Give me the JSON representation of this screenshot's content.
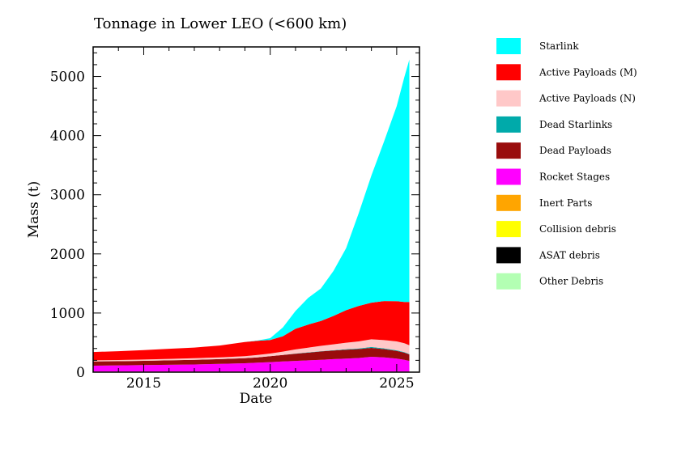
{
  "chart_data": {
    "type": "area",
    "stacked": true,
    "title": "Tonnage in Lower LEO (<600 km)",
    "xlabel": "Date",
    "ylabel": "Mass (t)",
    "xlim": [
      2013,
      2025.9
    ],
    "ylim": [
      0,
      5500
    ],
    "xticks": [
      2015,
      2020,
      2025
    ],
    "xtick_labels": [
      "2015",
      "2020",
      "2025"
    ],
    "yticks": [
      0,
      1000,
      2000,
      3000,
      4000,
      5000
    ],
    "ytick_labels": [
      "0",
      "1000",
      "2000",
      "3000",
      "4000",
      "5000"
    ],
    "grid": false,
    "legend_position": "right",
    "x": [
      2013.0,
      2014.0,
      2015.0,
      2016.0,
      2017.0,
      2018.0,
      2019.0,
      2019.5,
      2020.0,
      2020.5,
      2021.0,
      2021.5,
      2022.0,
      2022.5,
      2023.0,
      2023.5,
      2024.0,
      2024.5,
      2025.0,
      2025.3,
      2025.5
    ],
    "series": [
      {
        "name": "Other Debris",
        "color": "#b3ffb3",
        "values": [
          2,
          2,
          2,
          2,
          2,
          2,
          2,
          2,
          2,
          2,
          2,
          2,
          2,
          2,
          2,
          2,
          2,
          2,
          2,
          2,
          2
        ]
      },
      {
        "name": "ASAT debris",
        "color": "#000000",
        "values": [
          3,
          3,
          3,
          3,
          3,
          3,
          3,
          3,
          3,
          3,
          3,
          3,
          3,
          3,
          3,
          3,
          3,
          3,
          3,
          3,
          3
        ]
      },
      {
        "name": "Collision debris",
        "color": "#ffff00",
        "values": [
          2,
          2,
          2,
          2,
          2,
          2,
          2,
          2,
          2,
          2,
          2,
          2,
          2,
          2,
          2,
          2,
          2,
          2,
          2,
          2,
          2
        ]
      },
      {
        "name": "Inert Parts",
        "color": "#ffa500",
        "values": [
          3,
          3,
          3,
          3,
          3,
          3,
          3,
          3,
          3,
          3,
          3,
          3,
          3,
          3,
          3,
          3,
          3,
          3,
          3,
          3,
          3
        ]
      },
      {
        "name": "Rocket Stages",
        "color": "#ff00ff",
        "values": [
          100,
          105,
          110,
          115,
          120,
          130,
          140,
          150,
          160,
          170,
          180,
          190,
          200,
          210,
          220,
          230,
          250,
          240,
          220,
          200,
          180
        ]
      },
      {
        "name": "Dead Payloads",
        "color": "#990c0c",
        "values": [
          70,
          70,
          72,
          75,
          78,
          80,
          85,
          90,
          100,
          110,
          120,
          130,
          140,
          145,
          150,
          150,
          150,
          140,
          130,
          120,
          110
        ]
      },
      {
        "name": "Dead Starlinks",
        "color": "#00aaaa",
        "values": [
          0,
          0,
          0,
          0,
          0,
          0,
          0,
          0,
          0,
          2,
          4,
          5,
          5,
          6,
          8,
          10,
          15,
          12,
          10,
          8,
          6
        ]
      },
      {
        "name": "Active Payloads (N)",
        "color": "#ffc8c8",
        "values": [
          20,
          20,
          22,
          25,
          28,
          30,
          35,
          40,
          45,
          55,
          70,
          80,
          90,
          100,
          110,
          120,
          130,
          140,
          150,
          150,
          150
        ]
      },
      {
        "name": "Active Payloads (M)",
        "color": "#ff0000",
        "values": [
          140,
          150,
          160,
          170,
          180,
          200,
          240,
          240,
          230,
          260,
          350,
          390,
          420,
          480,
          550,
          600,
          620,
          660,
          680,
          700,
          730
        ]
      },
      {
        "name": "Starlink",
        "color": "#00ffff",
        "values": [
          0,
          0,
          0,
          0,
          0,
          0,
          0,
          5,
          30,
          150,
          300,
          450,
          550,
          760,
          1050,
          1570,
          2150,
          2700,
          3300,
          3800,
          4100
        ]
      }
    ]
  }
}
